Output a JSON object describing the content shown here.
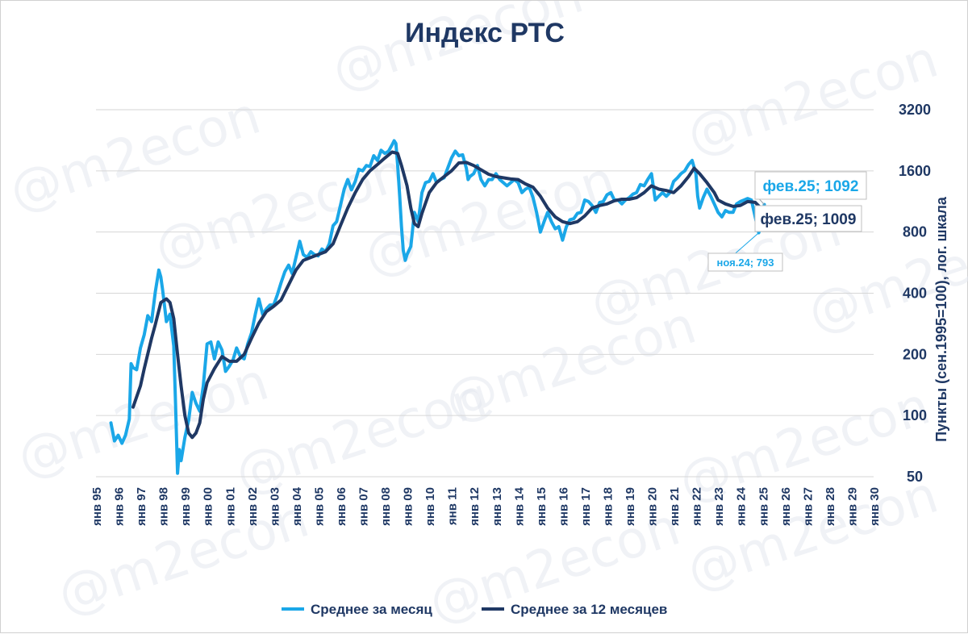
{
  "chart_data": {
    "type": "line",
    "title": "Индекс РТС",
    "ylabel": "Пункты (сен.1995=100), лог. шкала",
    "xlabel": "",
    "yscale": "log",
    "ylim": [
      50,
      3200
    ],
    "yticks": [
      50,
      100,
      200,
      400,
      800,
      1600,
      3200
    ],
    "xlim": [
      1995.0,
      2030.0
    ],
    "xticks": [
      "янв 95",
      "янв 96",
      "янв 97",
      "янв 98",
      "янв 99",
      "янв 00",
      "янв 01",
      "янв 02",
      "янв 03",
      "янв 04",
      "янв 05",
      "янв 06",
      "янв 07",
      "янв 08",
      "янв 09",
      "янв 10",
      "янв 11",
      "янв 12",
      "янв 13",
      "янв 14",
      "янв 15",
      "янв 16",
      "янв 17",
      "янв 18",
      "янв 19",
      "янв 20",
      "янв 21",
      "янв 22",
      "янв 23",
      "янв 24",
      "янв 25",
      "янв 26",
      "янв 27",
      "янв 28",
      "янв 29",
      "янв 30"
    ],
    "grid": true,
    "legend_position": "bottom",
    "series": [
      {
        "name": "Среднее за месяц",
        "color": "#1aa7e8",
        "points": [
          [
            1995.67,
            92
          ],
          [
            1995.83,
            75
          ],
          [
            1996.0,
            80
          ],
          [
            1996.17,
            73
          ],
          [
            1996.33,
            80
          ],
          [
            1996.5,
            96
          ],
          [
            1996.58,
            180
          ],
          [
            1996.67,
            172
          ],
          [
            1996.83,
            168
          ],
          [
            1997.0,
            215
          ],
          [
            1997.17,
            250
          ],
          [
            1997.33,
            310
          ],
          [
            1997.5,
            290
          ],
          [
            1997.67,
            405
          ],
          [
            1997.83,
            520
          ],
          [
            1997.92,
            480
          ],
          [
            1998.0,
            415
          ],
          [
            1998.17,
            290
          ],
          [
            1998.33,
            315
          ],
          [
            1998.5,
            220
          ],
          [
            1998.58,
            115
          ],
          [
            1998.67,
            52
          ],
          [
            1998.75,
            68
          ],
          [
            1998.83,
            60
          ],
          [
            1999.0,
            78
          ],
          [
            1999.17,
            95
          ],
          [
            1999.33,
            130
          ],
          [
            1999.5,
            115
          ],
          [
            1999.67,
            105
          ],
          [
            1999.83,
            140
          ],
          [
            2000.0,
            225
          ],
          [
            2000.17,
            230
          ],
          [
            2000.33,
            190
          ],
          [
            2000.5,
            230
          ],
          [
            2000.67,
            210
          ],
          [
            2000.83,
            165
          ],
          [
            2001.0,
            175
          ],
          [
            2001.17,
            188
          ],
          [
            2001.33,
            215
          ],
          [
            2001.5,
            195
          ],
          [
            2001.67,
            190
          ],
          [
            2001.83,
            225
          ],
          [
            2002.0,
            255
          ],
          [
            2002.17,
            315
          ],
          [
            2002.33,
            375
          ],
          [
            2002.5,
            315
          ],
          [
            2002.67,
            335
          ],
          [
            2002.83,
            350
          ],
          [
            2003.0,
            350
          ],
          [
            2003.17,
            395
          ],
          [
            2003.33,
            450
          ],
          [
            2003.5,
            510
          ],
          [
            2003.67,
            550
          ],
          [
            2003.83,
            500
          ],
          [
            2004.0,
            600
          ],
          [
            2004.17,
            720
          ],
          [
            2004.33,
            620
          ],
          [
            2004.5,
            600
          ],
          [
            2004.67,
            640
          ],
          [
            2004.83,
            620
          ],
          [
            2005.0,
            610
          ],
          [
            2005.17,
            660
          ],
          [
            2005.33,
            640
          ],
          [
            2005.5,
            700
          ],
          [
            2005.67,
            860
          ],
          [
            2005.83,
            900
          ],
          [
            2006.0,
            1080
          ],
          [
            2006.17,
            1300
          ],
          [
            2006.33,
            1450
          ],
          [
            2006.5,
            1290
          ],
          [
            2006.67,
            1420
          ],
          [
            2006.83,
            1630
          ],
          [
            2007.0,
            1600
          ],
          [
            2007.17,
            1700
          ],
          [
            2007.33,
            1680
          ],
          [
            2007.5,
            1900
          ],
          [
            2007.67,
            1800
          ],
          [
            2007.83,
            2020
          ],
          [
            2008.0,
            1950
          ],
          [
            2008.17,
            2000
          ],
          [
            2008.33,
            2150
          ],
          [
            2008.42,
            2250
          ],
          [
            2008.5,
            2180
          ],
          [
            2008.58,
            1700
          ],
          [
            2008.67,
            1200
          ],
          [
            2008.75,
            850
          ],
          [
            2008.83,
            650
          ],
          [
            2008.92,
            580
          ],
          [
            2009.0,
            620
          ],
          [
            2009.17,
            680
          ],
          [
            2009.33,
            1000
          ],
          [
            2009.5,
            900
          ],
          [
            2009.67,
            1250
          ],
          [
            2009.83,
            1400
          ],
          [
            2010.0,
            1420
          ],
          [
            2010.17,
            1550
          ],
          [
            2010.33,
            1400
          ],
          [
            2010.5,
            1450
          ],
          [
            2010.67,
            1480
          ],
          [
            2010.83,
            1650
          ],
          [
            2011.0,
            1850
          ],
          [
            2011.17,
            2000
          ],
          [
            2011.33,
            1900
          ],
          [
            2011.5,
            1920
          ],
          [
            2011.67,
            1650
          ],
          [
            2011.75,
            1450
          ],
          [
            2011.83,
            1500
          ],
          [
            2012.0,
            1550
          ],
          [
            2012.17,
            1700
          ],
          [
            2012.33,
            1450
          ],
          [
            2012.5,
            1350
          ],
          [
            2012.67,
            1450
          ],
          [
            2012.83,
            1450
          ],
          [
            2013.0,
            1550
          ],
          [
            2013.17,
            1450
          ],
          [
            2013.33,
            1400
          ],
          [
            2013.5,
            1350
          ],
          [
            2013.67,
            1400
          ],
          [
            2013.83,
            1450
          ],
          [
            2014.0,
            1400
          ],
          [
            2014.17,
            1250
          ],
          [
            2014.33,
            1300
          ],
          [
            2014.5,
            1330
          ],
          [
            2014.67,
            1180
          ],
          [
            2014.83,
            1000
          ],
          [
            2015.0,
            800
          ],
          [
            2015.17,
            900
          ],
          [
            2015.33,
            1000
          ],
          [
            2015.5,
            900
          ],
          [
            2015.67,
            830
          ],
          [
            2015.83,
            850
          ],
          [
            2016.0,
            730
          ],
          [
            2016.17,
            850
          ],
          [
            2016.33,
            920
          ],
          [
            2016.5,
            930
          ],
          [
            2016.67,
            990
          ],
          [
            2016.83,
            1000
          ],
          [
            2017.0,
            1150
          ],
          [
            2017.17,
            1130
          ],
          [
            2017.33,
            1080
          ],
          [
            2017.5,
            1000
          ],
          [
            2017.67,
            1120
          ],
          [
            2017.83,
            1130
          ],
          [
            2018.0,
            1220
          ],
          [
            2018.17,
            1250
          ],
          [
            2018.33,
            1150
          ],
          [
            2018.5,
            1150
          ],
          [
            2018.67,
            1100
          ],
          [
            2018.83,
            1150
          ],
          [
            2019.0,
            1180
          ],
          [
            2019.17,
            1230
          ],
          [
            2019.33,
            1250
          ],
          [
            2019.5,
            1370
          ],
          [
            2019.67,
            1350
          ],
          [
            2019.83,
            1450
          ],
          [
            2020.0,
            1550
          ],
          [
            2020.17,
            1150
          ],
          [
            2020.33,
            1200
          ],
          [
            2020.5,
            1250
          ],
          [
            2020.67,
            1200
          ],
          [
            2020.83,
            1250
          ],
          [
            2021.0,
            1420
          ],
          [
            2021.17,
            1480
          ],
          [
            2021.33,
            1550
          ],
          [
            2021.5,
            1600
          ],
          [
            2021.67,
            1720
          ],
          [
            2021.83,
            1800
          ],
          [
            2022.0,
            1550
          ],
          [
            2022.08,
            1200
          ],
          [
            2022.17,
            1050
          ],
          [
            2022.33,
            1180
          ],
          [
            2022.5,
            1300
          ],
          [
            2022.67,
            1200
          ],
          [
            2022.83,
            1100
          ],
          [
            2023.0,
            1000
          ],
          [
            2023.17,
            950
          ],
          [
            2023.33,
            1020
          ],
          [
            2023.5,
            1000
          ],
          [
            2023.67,
            1000
          ],
          [
            2023.83,
            1100
          ],
          [
            2024.0,
            1130
          ],
          [
            2024.17,
            1150
          ],
          [
            2024.33,
            1170
          ],
          [
            2024.5,
            1150
          ],
          [
            2024.67,
            950
          ],
          [
            2024.83,
            793
          ],
          [
            2025.0,
            900
          ],
          [
            2025.08,
            1092
          ]
        ]
      },
      {
        "name": "Среднее за 12 месяцев",
        "color": "#1f3864",
        "points": [
          [
            1996.67,
            110
          ],
          [
            1997.0,
            140
          ],
          [
            1997.17,
            170
          ],
          [
            1997.5,
            240
          ],
          [
            1997.67,
            280
          ],
          [
            1997.92,
            360
          ],
          [
            1998.17,
            375
          ],
          [
            1998.33,
            360
          ],
          [
            1998.5,
            300
          ],
          [
            1998.67,
            200
          ],
          [
            1998.83,
            140
          ],
          [
            1999.0,
            100
          ],
          [
            1999.17,
            82
          ],
          [
            1999.33,
            78
          ],
          [
            1999.5,
            82
          ],
          [
            1999.67,
            92
          ],
          [
            1999.83,
            120
          ],
          [
            2000.0,
            145
          ],
          [
            2000.33,
            170
          ],
          [
            2000.67,
            195
          ],
          [
            2001.0,
            185
          ],
          [
            2001.33,
            185
          ],
          [
            2001.67,
            200
          ],
          [
            2002.0,
            240
          ],
          [
            2002.33,
            285
          ],
          [
            2002.67,
            325
          ],
          [
            2003.0,
            345
          ],
          [
            2003.33,
            370
          ],
          [
            2003.67,
            440
          ],
          [
            2004.0,
            520
          ],
          [
            2004.33,
            580
          ],
          [
            2004.67,
            600
          ],
          [
            2005.0,
            620
          ],
          [
            2005.33,
            640
          ],
          [
            2005.67,
            700
          ],
          [
            2006.0,
            860
          ],
          [
            2006.33,
            1050
          ],
          [
            2006.67,
            1250
          ],
          [
            2007.0,
            1450
          ],
          [
            2007.33,
            1600
          ],
          [
            2007.67,
            1720
          ],
          [
            2008.0,
            1850
          ],
          [
            2008.33,
            1980
          ],
          [
            2008.58,
            1950
          ],
          [
            2008.75,
            1700
          ],
          [
            2009.0,
            1350
          ],
          [
            2009.17,
            1050
          ],
          [
            2009.33,
            880
          ],
          [
            2009.5,
            850
          ],
          [
            2009.67,
            990
          ],
          [
            2010.0,
            1250
          ],
          [
            2010.33,
            1400
          ],
          [
            2010.67,
            1500
          ],
          [
            2011.0,
            1600
          ],
          [
            2011.33,
            1750
          ],
          [
            2011.67,
            1760
          ],
          [
            2012.0,
            1700
          ],
          [
            2012.33,
            1620
          ],
          [
            2012.67,
            1540
          ],
          [
            2013.0,
            1500
          ],
          [
            2013.33,
            1480
          ],
          [
            2013.67,
            1460
          ],
          [
            2014.0,
            1450
          ],
          [
            2014.33,
            1380
          ],
          [
            2014.67,
            1330
          ],
          [
            2015.0,
            1200
          ],
          [
            2015.33,
            1050
          ],
          [
            2015.67,
            950
          ],
          [
            2016.0,
            900
          ],
          [
            2016.33,
            880
          ],
          [
            2016.67,
            900
          ],
          [
            2017.0,
            960
          ],
          [
            2017.33,
            1050
          ],
          [
            2017.67,
            1080
          ],
          [
            2018.0,
            1100
          ],
          [
            2018.33,
            1140
          ],
          [
            2018.67,
            1160
          ],
          [
            2019.0,
            1160
          ],
          [
            2019.33,
            1180
          ],
          [
            2019.67,
            1250
          ],
          [
            2020.0,
            1350
          ],
          [
            2020.33,
            1300
          ],
          [
            2020.67,
            1280
          ],
          [
            2021.0,
            1250
          ],
          [
            2021.33,
            1350
          ],
          [
            2021.67,
            1500
          ],
          [
            2021.92,
            1650
          ],
          [
            2022.17,
            1550
          ],
          [
            2022.5,
            1400
          ],
          [
            2022.83,
            1250
          ],
          [
            2023.0,
            1150
          ],
          [
            2023.33,
            1100
          ],
          [
            2023.67,
            1070
          ],
          [
            2024.0,
            1080
          ],
          [
            2024.33,
            1130
          ],
          [
            2024.67,
            1120
          ],
          [
            2025.08,
            1009
          ]
        ]
      }
    ],
    "annotations": [
      {
        "label": "фев.25; 1092",
        "series": 0,
        "x": 2025.08,
        "y": 1092
      },
      {
        "label": "фев.25; 1009",
        "series": 1,
        "x": 2025.08,
        "y": 1009
      },
      {
        "label": "ноя.24; 793",
        "series": 0,
        "x": 2024.83,
        "y": 793
      }
    ],
    "watermark": "@m2econ"
  }
}
